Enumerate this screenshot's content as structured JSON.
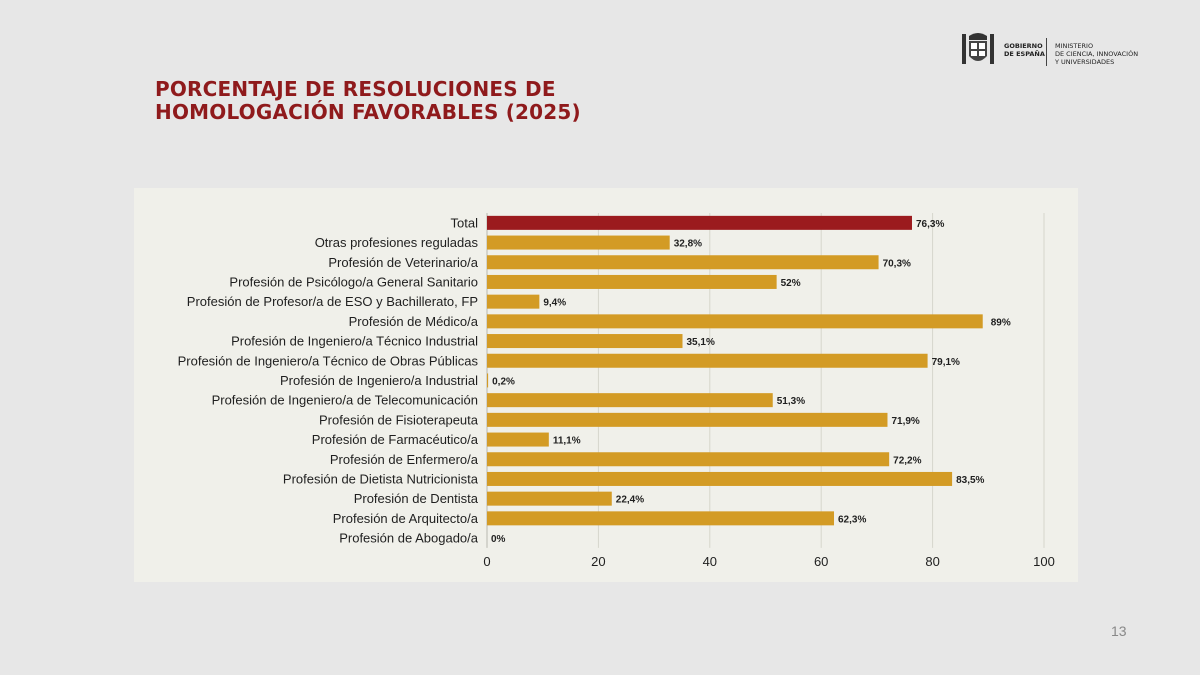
{
  "slide": {
    "title_line1": "PORCENTAJE DE RESOLUCIONES DE",
    "title_line2": "HOMOLOGACIÓN FAVORABLES (2025)",
    "page_number": "13"
  },
  "logo": {
    "gov_line1": "GOBIERNO",
    "gov_line2": "DE ESPAÑA",
    "ministry_line1": "MINISTERIO",
    "ministry_line2": "DE CIENCIA, INNOVACIÓN",
    "ministry_line3": "Y UNIVERSIDADES"
  },
  "colors": {
    "title": "#8f1a1c",
    "total_bar": "#9b1b1e",
    "bar": "#d39b25",
    "grid": "#d6d6cc",
    "axis": "#b8b8b0",
    "text": "#1f1f1f"
  },
  "chart_data": {
    "type": "bar",
    "orientation": "horizontal",
    "categories": [
      "Total",
      "Otras profesiones reguladas",
      "Profesión de Veterinario/a",
      "Profesión de Psicólogo/a General Sanitario",
      "Profesión de Profesor/a de ESO y Bachillerato, FP",
      "Profesión de Médico/a",
      "Profesión de Ingeniero/a Técnico Industrial",
      "Profesión de Ingeniero/a Técnico de Obras Públicas",
      "Profesión de Ingeniero/a Industrial",
      "Profesión de Ingeniero/a de Telecomunicación",
      "Profesión de Fisioterapeuta",
      "Profesión de Farmacéutico/a",
      "Profesión de Enfermero/a",
      "Profesión de Dietista Nutricionista",
      "Profesión de Dentista",
      "Profesión de Arquitecto/a",
      "Profesión de Abogado/a"
    ],
    "values": [
      76.3,
      32.8,
      70.3,
      52,
      9.4,
      89,
      35.1,
      79.1,
      0.2,
      51.3,
      71.9,
      11.1,
      72.2,
      83.5,
      22.4,
      62.3,
      0
    ],
    "data_labels": [
      "76,3%",
      "32,8%",
      "70,3%",
      "52%",
      "9,4%",
      "89%",
      "35,1%",
      "79,1%",
      "0,2%",
      "51,3%",
      "71,9%",
      "11,1%",
      "72,2%",
      "83,5%",
      "22,4%",
      "62,3%",
      "0%"
    ],
    "highlight_index": 0,
    "xlim": [
      0,
      100
    ],
    "xticks": [
      0,
      20,
      40,
      60,
      80,
      100
    ],
    "grid": "vertical",
    "title": "",
    "xlabel": "",
    "ylabel": ""
  }
}
